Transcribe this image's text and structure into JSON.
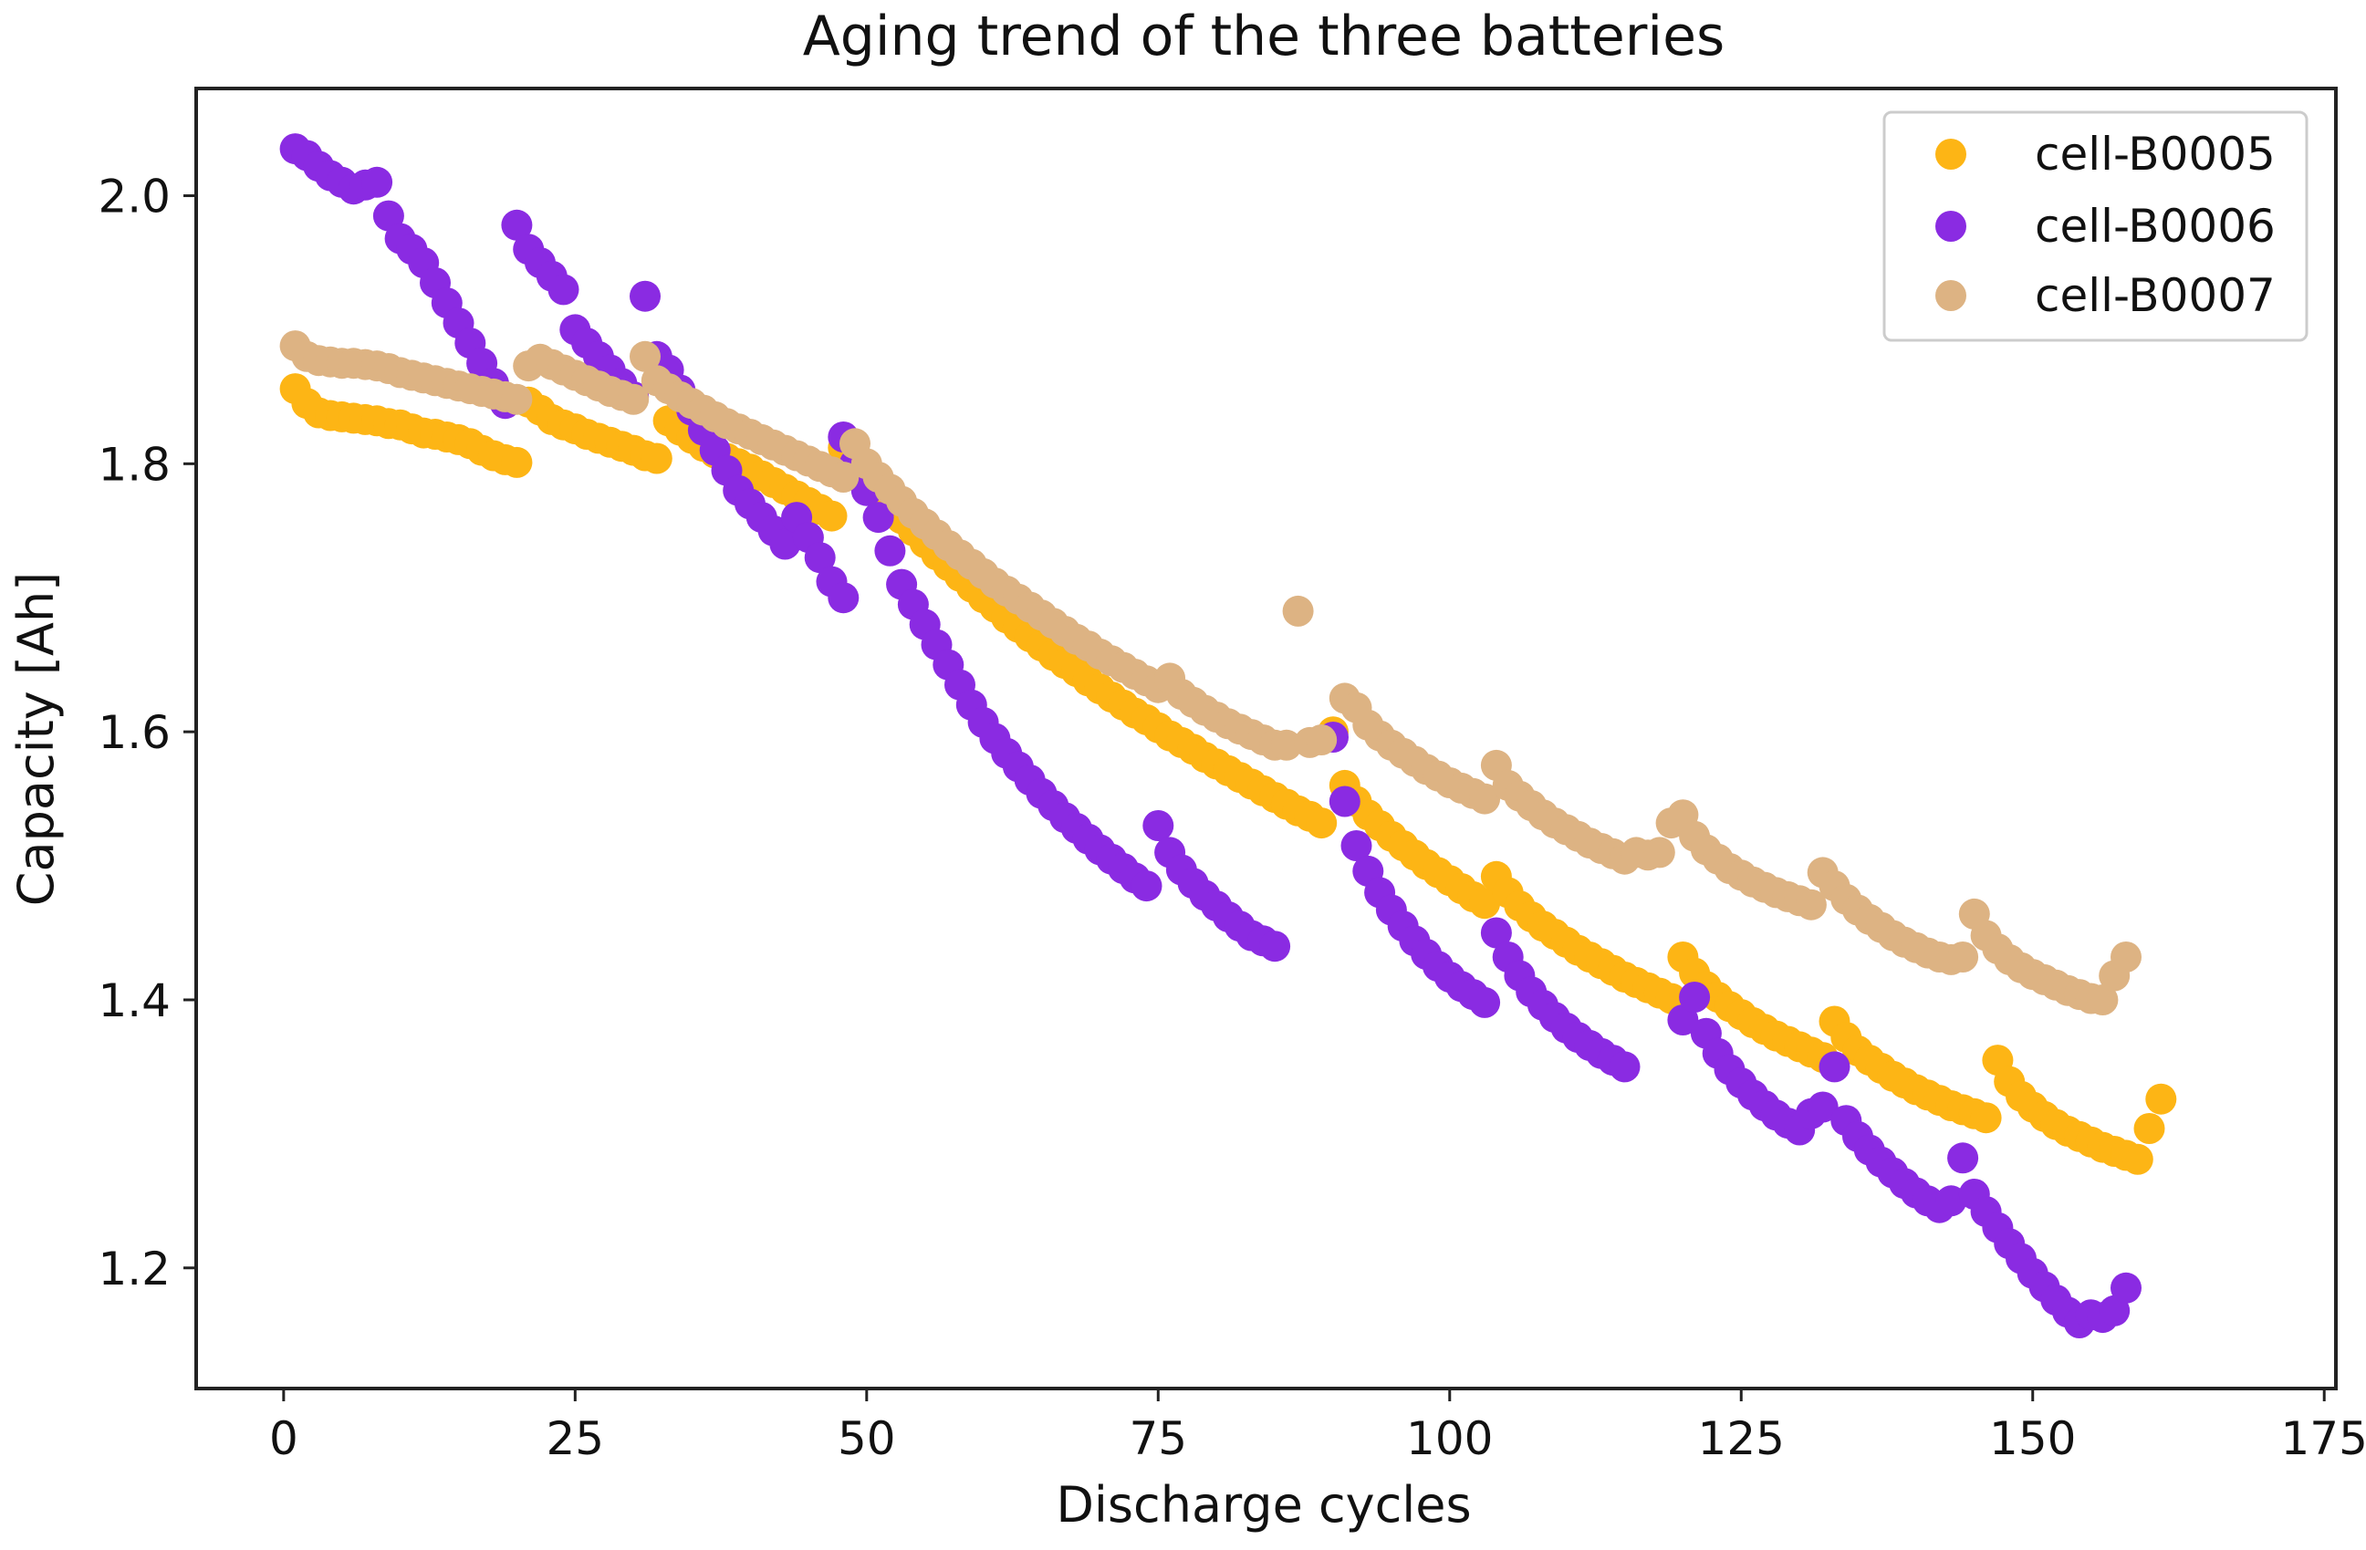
{
  "chart_data": {
    "type": "scatter",
    "title": "Aging trend of the three batteries",
    "xlabel": "Discharge cycles",
    "ylabel": "Capacity [Ah]",
    "xlim": [
      -7.5,
      176
    ],
    "ylim": [
      1.11,
      2.08
    ],
    "xticks": [
      0,
      25,
      50,
      75,
      100,
      125,
      150,
      175
    ],
    "yticks": [
      1.2,
      1.4,
      1.6,
      1.8,
      2.0
    ],
    "ytick_labels": [
      "1.2",
      "1.4",
      "1.6",
      "1.8",
      "2.0"
    ],
    "grid": false,
    "legend_position": "top-right",
    "series": [
      {
        "name": "cell-B0005",
        "color": "#fdb515",
        "segments": [
          {
            "x_start": 1,
            "values": [
              1.856,
              1.845,
              1.838,
              1.836,
              1.835,
              1.834,
              1.833,
              1.832,
              1.83,
              1.829,
              1.826,
              1.823,
              1.822,
              1.82,
              1.818,
              1.815,
              1.81,
              1.806,
              1.803,
              1.801
            ]
          },
          {
            "x_start": 21,
            "values": [
              1.846,
              1.84,
              1.833,
              1.829,
              1.826,
              1.822,
              1.819,
              1.816,
              1.813,
              1.81,
              1.806,
              1.804
            ]
          },
          {
            "x_start": 33,
            "values": [
              1.832,
              1.825,
              1.819,
              1.813,
              1.808,
              1.804,
              1.8,
              1.796,
              1.791,
              1.786,
              1.781,
              1.776,
              1.771,
              1.766,
              1.761
            ]
          },
          {
            "x_start": 48,
            "values": [
              1.812,
              1.8,
              1.789,
              1.778,
              1.768,
              1.759,
              1.75,
              1.741,
              1.732,
              1.724,
              1.716,
              1.708,
              1.7,
              1.693,
              1.685,
              1.678,
              1.671,
              1.664,
              1.657,
              1.651,
              1.645,
              1.638,
              1.632,
              1.626,
              1.62,
              1.614,
              1.609,
              1.603,
              1.597,
              1.592,
              1.587,
              1.581,
              1.576,
              1.571,
              1.566,
              1.561,
              1.556,
              1.551,
              1.546,
              1.541,
              1.537,
              1.532
            ]
          },
          {
            "x_start": 90,
            "values": [
              1.6,
              1.56,
              1.548,
              1.538,
              1.53,
              1.522,
              1.515,
              1.508,
              1.501,
              1.495,
              1.489,
              1.483,
              1.477,
              1.472,
              1.492,
              1.48,
              1.47,
              1.462,
              1.455,
              1.449,
              1.443,
              1.437,
              1.432,
              1.427,
              1.422,
              1.417,
              1.413,
              1.409,
              1.405,
              1.401,
              1.432,
              1.42,
              1.41,
              1.402,
              1.395,
              1.389,
              1.383,
              1.378,
              1.373,
              1.369,
              1.365,
              1.361,
              1.357,
              1.384,
              1.372,
              1.362,
              1.355,
              1.349,
              1.343,
              1.338,
              1.333,
              1.329,
              1.325,
              1.321,
              1.318,
              1.315,
              1.312,
              1.355,
              1.339,
              1.328,
              1.32,
              1.313,
              1.307,
              1.302,
              1.298,
              1.294,
              1.29,
              1.287,
              1.284,
              1.281,
              1.304,
              1.326
            ]
          }
        ]
      },
      {
        "name": "cell-B0006",
        "color": "#8a2be2",
        "segments": [
          {
            "x_start": 1,
            "values": [
              2.035,
              2.03,
              2.022,
              2.015,
              2.01,
              2.005,
              2.008,
              2.01,
              1.985,
              1.968,
              1.96,
              1.95,
              1.935,
              1.92,
              1.905,
              1.89,
              1.875,
              1.86,
              1.845
            ]
          },
          {
            "x_start": 20,
            "values": [
              1.978,
              1.96,
              1.95,
              1.94,
              1.93,
              1.9,
              1.89,
              1.88,
              1.87,
              1.86,
              1.85,
              1.925,
              1.88,
              1.87,
              1.855,
              1.84,
              1.825,
              1.81,
              1.795,
              1.78,
              1.77,
              1.76,
              1.75,
              1.74,
              1.76,
              1.745,
              1.73,
              1.712,
              1.7
            ]
          },
          {
            "x_start": 48,
            "values": [
              1.82,
              1.8,
              1.78,
              1.76,
              1.735,
              1.71,
              1.695,
              1.68,
              1.665,
              1.65,
              1.635,
              1.62,
              1.607,
              1.595,
              1.584,
              1.574,
              1.564,
              1.554,
              1.545,
              1.536,
              1.528,
              1.52,
              1.512,
              1.505,
              1.498,
              1.491,
              1.485,
              1.53,
              1.51,
              1.497,
              1.487,
              1.478,
              1.47,
              1.462,
              1.455,
              1.448,
              1.444,
              1.44
            ]
          },
          {
            "x_start": 90,
            "values": [
              1.596,
              1.548,
              1.515,
              1.496,
              1.48,
              1.467,
              1.455,
              1.444,
              1.434,
              1.425,
              1.417,
              1.41,
              1.404,
              1.398,
              1.45,
              1.432,
              1.418,
              1.406,
              1.396,
              1.387,
              1.379,
              1.372,
              1.366,
              1.36,
              1.355,
              1.35
            ]
          },
          {
            "x_start": 120,
            "values": [
              1.385,
              1.402,
              1.375,
              1.36,
              1.348,
              1.338,
              1.329,
              1.321,
              1.314,
              1.308,
              1.303,
              1.315,
              1.32,
              1.35,
              1.31,
              1.298,
              1.288,
              1.279,
              1.271,
              1.263,
              1.256,
              1.25,
              1.245,
              1.25,
              1.282,
              1.255,
              1.242,
              1.23,
              1.218,
              1.207,
              1.196,
              1.186,
              1.176,
              1.167,
              1.159,
              1.165,
              1.163,
              1.168,
              1.185
            ]
          }
        ]
      },
      {
        "name": "cell-B0007",
        "color": "#ddb383",
        "segments": [
          {
            "x_start": 1,
            "values": [
              1.888,
              1.88,
              1.877,
              1.876,
              1.875,
              1.875,
              1.874,
              1.873,
              1.871,
              1.868,
              1.866,
              1.864,
              1.862,
              1.86,
              1.858,
              1.856,
              1.854,
              1.852,
              1.85,
              1.848,
              1.873,
              1.878,
              1.874,
              1.87,
              1.866,
              1.862,
              1.858,
              1.854,
              1.851,
              1.848,
              1.88,
              1.862,
              1.856,
              1.85,
              1.845,
              1.84,
              1.835,
              1.83,
              1.826,
              1.822,
              1.818,
              1.814,
              1.81,
              1.806,
              1.802,
              1.798,
              1.794,
              1.79
            ]
          },
          {
            "x_start": 49,
            "values": [
              1.815,
              1.8,
              1.79,
              1.781,
              1.772,
              1.763,
              1.755,
              1.747,
              1.739,
              1.732,
              1.725,
              1.718,
              1.711,
              1.705,
              1.699,
              1.693,
              1.687,
              1.681,
              1.675,
              1.669,
              1.664,
              1.658,
              1.653,
              1.648,
              1.643,
              1.638,
              1.633,
              1.64,
              1.628,
              1.622,
              1.616,
              1.611,
              1.606,
              1.602,
              1.598,
              1.594,
              1.59,
              1.59,
              1.69
            ]
          },
          {
            "x_start": 88,
            "values": [
              1.592,
              1.594
            ]
          },
          {
            "x_start": 91,
            "values": [
              1.625,
              1.618,
              1.605,
              1.597,
              1.59,
              1.584,
              1.578,
              1.572,
              1.567,
              1.562,
              1.558,
              1.554,
              1.55,
              1.575,
              1.56,
              1.552,
              1.545,
              1.538,
              1.532,
              1.527,
              1.522,
              1.517,
              1.513,
              1.509,
              1.505,
              1.51,
              1.508,
              1.51,
              1.532,
              1.538,
              1.522,
              1.512,
              1.505,
              1.498,
              1.493,
              1.488,
              1.484,
              1.48,
              1.477,
              1.474,
              1.471,
              1.495,
              1.485,
              1.475,
              1.467,
              1.46,
              1.454,
              1.448,
              1.443,
              1.439,
              1.435,
              1.432,
              1.43,
              1.432,
              1.464,
              1.448,
              1.438,
              1.43,
              1.424,
              1.419,
              1.415,
              1.411,
              1.407,
              1.404,
              1.401,
              1.4,
              1.418,
              1.432
            ]
          }
        ]
      }
    ]
  }
}
